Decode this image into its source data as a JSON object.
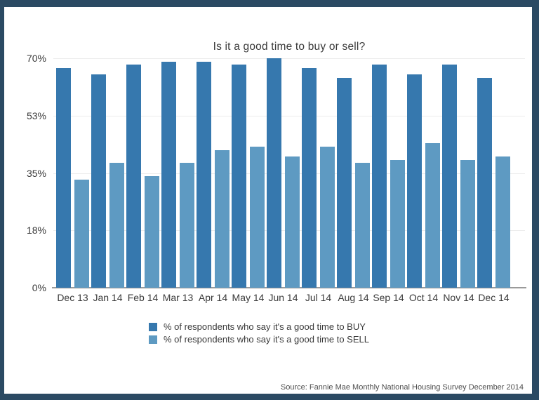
{
  "frame": {
    "border_color": "#2b4a63",
    "background": "#ffffff"
  },
  "chart_data": {
    "type": "bar",
    "title": "Is it a good time to buy or sell?",
    "categories": [
      "Dec 13",
      "Jan 14",
      "Feb 14",
      "Mar 13",
      "Apr 14",
      "May 14",
      "Jun 14",
      "Jul 14",
      "Aug 14",
      "Sep 14",
      "Oct 14",
      "Nov 14",
      "Dec 14"
    ],
    "series": [
      {
        "name": "% of respondents who say it's a good time to BUY",
        "color": "#3678ae",
        "values": [
          67,
          65,
          68,
          69,
          69,
          68,
          70,
          67,
          64,
          68,
          65,
          68,
          64
        ]
      },
      {
        "name": "% of respondents who say it's a good time to SELL",
        "color": "#5e9ac2",
        "values": [
          33,
          38,
          34,
          38,
          42,
          43,
          40,
          43,
          38,
          39,
          44,
          39,
          40
        ]
      }
    ],
    "y_ticks": [
      "70%",
      "53%",
      "35%",
      "18%",
      "0%"
    ],
    "ylim": [
      0,
      70
    ],
    "grid": true,
    "legend_position": "bottom",
    "gridline_color": "#ececec",
    "axis_color": "#9a9a9a"
  },
  "source": "Source: Fannie Mae Monthly National Housing Survey December 2014"
}
